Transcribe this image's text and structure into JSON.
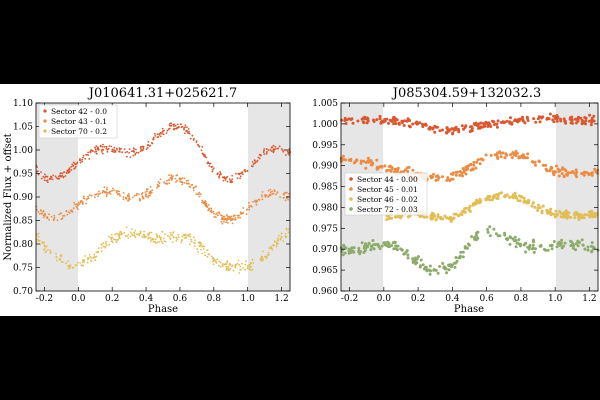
{
  "chart_data": [
    {
      "type": "scatter",
      "title": "J010641.31+025621.7",
      "xlabel": "Phase",
      "ylabel": "Normalized Flux + offset",
      "xlim": [
        -0.25,
        1.25
      ],
      "ylim": [
        0.7,
        1.1
      ],
      "xticks": [
        "-0.2",
        "0.0",
        "0.2",
        "0.4",
        "0.6",
        "0.8",
        "1.0",
        "1.2"
      ],
      "yticks": [
        "0.70",
        "0.75",
        "0.80",
        "0.85",
        "0.90",
        "0.95",
        "1.00",
        "1.05",
        "1.10"
      ],
      "shaded_phase_ranges": [
        [
          -0.25,
          0.0
        ],
        [
          1.0,
          1.25
        ]
      ],
      "legend_position": "top-left",
      "series": [
        {
          "name": "Sector 42 - 0.0",
          "color": "#d9582f",
          "curve": {
            "phase": [
              -0.25,
              -0.2,
              -0.15,
              -0.1,
              -0.05,
              0.0,
              0.05,
              0.1,
              0.15,
              0.2,
              0.25,
              0.3,
              0.35,
              0.4,
              0.45,
              0.5,
              0.55,
              0.6,
              0.65,
              0.7,
              0.75,
              0.8,
              0.85,
              0.9,
              0.95,
              1.0,
              1.05,
              1.1,
              1.15,
              1.2,
              1.25
            ],
            "flux": [
              0.96,
              0.942,
              0.938,
              0.945,
              0.958,
              0.975,
              0.99,
              1.0,
              1.003,
              1.002,
              0.998,
              0.993,
              0.996,
              1.008,
              1.025,
              1.04,
              1.05,
              1.052,
              1.04,
              1.015,
              0.985,
              0.958,
              0.942,
              0.938,
              0.945,
              0.96,
              0.978,
              0.993,
              1.003,
              1.002,
              0.995
            ]
          },
          "scatter": 0.008
        },
        {
          "name": "Sector 43 - 0.1",
          "color": "#ea8c45",
          "curve": {
            "phase": [
              -0.25,
              -0.2,
              -0.15,
              -0.1,
              -0.05,
              0.0,
              0.05,
              0.1,
              0.15,
              0.2,
              0.25,
              0.3,
              0.35,
              0.4,
              0.45,
              0.5,
              0.55,
              0.6,
              0.65,
              0.7,
              0.75,
              0.8,
              0.85,
              0.9,
              0.95,
              1.0,
              1.05,
              1.1,
              1.15,
              1.2,
              1.25
            ],
            "flux": [
              0.878,
              0.862,
              0.855,
              0.858,
              0.868,
              0.883,
              0.896,
              0.905,
              0.91,
              0.91,
              0.906,
              0.9,
              0.9,
              0.906,
              0.918,
              0.93,
              0.938,
              0.94,
              0.93,
              0.91,
              0.885,
              0.865,
              0.855,
              0.853,
              0.86,
              0.875,
              0.89,
              0.902,
              0.909,
              0.908,
              0.9
            ]
          },
          "scatter": 0.008
        },
        {
          "name": "Sector 70 - 0.2",
          "color": "#e2bd56",
          "curve": {
            "phase": [
              -0.25,
              -0.2,
              -0.15,
              -0.1,
              -0.05,
              0.0,
              0.05,
              0.1,
              0.15,
              0.2,
              0.25,
              0.3,
              0.35,
              0.4,
              0.45,
              0.5,
              0.55,
              0.6,
              0.65,
              0.7,
              0.75,
              0.8,
              0.85,
              0.9,
              0.95,
              1.0,
              1.05,
              1.1,
              1.15,
              1.2,
              1.25
            ],
            "flux": [
              0.818,
              0.795,
              0.778,
              0.765,
              0.756,
              0.755,
              0.762,
              0.778,
              0.795,
              0.81,
              0.818,
              0.822,
              0.822,
              0.818,
              0.812,
              0.81,
              0.814,
              0.82,
              0.815,
              0.8,
              0.783,
              0.767,
              0.757,
              0.752,
              0.75,
              0.752,
              0.76,
              0.775,
              0.795,
              0.815,
              0.83
            ]
          },
          "scatter": 0.011
        }
      ]
    },
    {
      "type": "scatter",
      "title": "J085304.59+132032.3",
      "xlabel": "Phase",
      "ylabel": "",
      "xlim": [
        -0.25,
        1.25
      ],
      "ylim": [
        0.96,
        1.005
      ],
      "xticks": [
        "-0.2",
        "0.0",
        "0.2",
        "0.4",
        "0.6",
        "0.8",
        "1.0",
        "1.2"
      ],
      "yticks": [
        "0.960",
        "0.965",
        "0.970",
        "0.975",
        "0.980",
        "0.985",
        "0.990",
        "0.995",
        "1.000",
        "1.005"
      ],
      "shaded_phase_ranges": [
        [
          -0.25,
          0.0
        ],
        [
          1.0,
          1.25
        ]
      ],
      "legend_position": "center-left",
      "series": [
        {
          "name": "Sector 44 - 0.00",
          "color": "#d9582f",
          "curve": {
            "phase": [
              -0.25,
              -0.2,
              -0.15,
              -0.1,
              -0.05,
              0.0,
              0.05,
              0.1,
              0.15,
              0.2,
              0.25,
              0.3,
              0.35,
              0.4,
              0.45,
              0.5,
              0.55,
              0.6,
              0.65,
              0.7,
              0.75,
              0.8,
              0.85,
              0.9,
              0.95,
              1.0,
              1.05,
              1.1,
              1.15,
              1.2,
              1.25
            ],
            "flux": [
              1.001,
              1.0012,
              1.0013,
              1.0012,
              1.001,
              1.0008,
              1.0007,
              1.0005,
              1.0002,
              0.9998,
              0.9993,
              0.9988,
              0.9985,
              0.9984,
              0.9987,
              0.9992,
              0.9997,
              1.0,
              1.0002,
              1.0004,
              1.0006,
              1.0008,
              1.001,
              1.0012,
              1.0013,
              1.0013,
              1.0012,
              1.0011,
              1.001,
              1.0009,
              1.0008
            ]
          },
          "scatter": 0.0009
        },
        {
          "name": "Sector 45 - 0.01",
          "color": "#ea8c45",
          "curve": {
            "phase": [
              -0.25,
              -0.2,
              -0.15,
              -0.1,
              -0.05,
              0.0,
              0.05,
              0.1,
              0.15,
              0.2,
              0.25,
              0.3,
              0.35,
              0.4,
              0.45,
              0.5,
              0.55,
              0.6,
              0.65,
              0.7,
              0.75,
              0.8,
              0.85,
              0.9,
              0.95,
              1.0,
              1.05,
              1.1,
              1.15,
              1.2,
              1.25
            ],
            "flux": [
              0.9915,
              0.9912,
              0.991,
              0.9907,
              0.9903,
              0.9897,
              0.9892,
              0.9887,
              0.9882,
              0.9878,
              0.9875,
              0.9872,
              0.987,
              0.9872,
              0.988,
              0.9895,
              0.9908,
              0.9918,
              0.9924,
              0.9928,
              0.9927,
              0.9922,
              0.9915,
              0.9905,
              0.9895,
              0.9888,
              0.9884,
              0.9882,
              0.988,
              0.988,
              0.9882
            ]
          },
          "scatter": 0.001
        },
        {
          "name": "Sector 46 - 0.02",
          "color": "#e2bd56",
          "curve": {
            "phase": [
              0.0,
              0.05,
              0.1,
              0.15,
              0.2,
              0.25,
              0.3,
              0.35,
              0.4,
              0.45,
              0.5,
              0.55,
              0.6,
              0.65,
              0.7,
              0.75,
              0.8,
              0.85,
              0.9,
              0.95,
              1.0,
              1.05,
              1.1,
              1.15,
              1.2,
              1.25
            ],
            "flux": [
              0.9775,
              0.9778,
              0.9782,
              0.9784,
              0.9783,
              0.978,
              0.9776,
              0.9774,
              0.9776,
              0.9784,
              0.9798,
              0.9812,
              0.9822,
              0.9828,
              0.983,
              0.9828,
              0.9822,
              0.9812,
              0.98,
              0.979,
              0.9785,
              0.9782,
              0.978,
              0.9779,
              0.978,
              0.9782
            ]
          },
          "scatter": 0.0008
        },
        {
          "name": "Sector 72 - 0.03",
          "color": "#8dab6b",
          "curve": {
            "phase": [
              -0.25,
              -0.2,
              -0.15,
              -0.1,
              -0.05,
              0.0,
              0.05,
              0.1,
              0.15,
              0.2,
              0.25,
              0.3,
              0.35,
              0.4,
              0.45,
              0.5,
              0.55,
              0.6,
              0.65,
              0.7,
              0.75,
              0.8,
              0.85,
              0.9,
              0.95,
              1.0,
              1.05,
              1.1,
              1.15,
              1.2,
              1.25
            ],
            "flux": [
              0.97,
              0.9698,
              0.97,
              0.9705,
              0.971,
              0.9712,
              0.971,
              0.97,
              0.9682,
              0.9665,
              0.9655,
              0.965,
              0.9652,
              0.966,
              0.968,
              0.971,
              0.9735,
              0.9745,
              0.974,
              0.973,
              0.972,
              0.9712,
              0.9707,
              0.9705,
              0.9705,
              0.9708,
              0.9712,
              0.9713,
              0.971,
              0.9705,
              0.9702
            ]
          },
          "scatter": 0.0012
        }
      ]
    }
  ]
}
